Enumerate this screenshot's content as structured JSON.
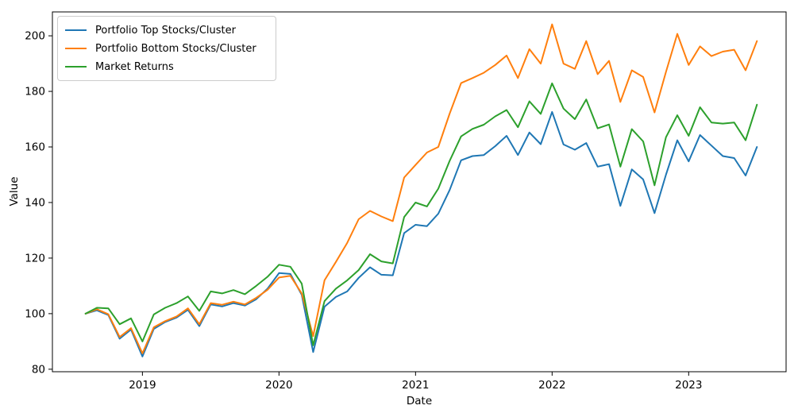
{
  "figure": {
    "kind": "matplotlib-line-figure",
    "background": "#ffffff",
    "spine_color": "#000000"
  },
  "chart_data": {
    "type": "line",
    "title": "",
    "xlabel": "Date",
    "ylabel": "Value",
    "grid": false,
    "legend_position": "upper left",
    "x_monthly": [
      "2018-07",
      "2018-08",
      "2018-09",
      "2018-10",
      "2018-11",
      "2018-12",
      "2019-01",
      "2019-02",
      "2019-03",
      "2019-04",
      "2019-05",
      "2019-06",
      "2019-07",
      "2019-08",
      "2019-09",
      "2019-10",
      "2019-11",
      "2019-12",
      "2020-01",
      "2020-02",
      "2020-03",
      "2020-04",
      "2020-05",
      "2020-06",
      "2020-07",
      "2020-08",
      "2020-09",
      "2020-10",
      "2020-11",
      "2020-12",
      "2021-01",
      "2021-02",
      "2021-03",
      "2021-04",
      "2021-05",
      "2021-06",
      "2021-07",
      "2021-08",
      "2021-09",
      "2021-10",
      "2021-11",
      "2021-12",
      "2022-01",
      "2022-02",
      "2022-03",
      "2022-04",
      "2022-05",
      "2022-06",
      "2022-07",
      "2022-08",
      "2022-09",
      "2022-10",
      "2022-11",
      "2022-12",
      "2023-01",
      "2023-02",
      "2023-03",
      "2023-04",
      "2023-05",
      "2023-06"
    ],
    "x_ticks": [
      {
        "month_index": 5,
        "label": "2019"
      },
      {
        "month_index": 17,
        "label": "2020"
      },
      {
        "month_index": 29,
        "label": "2021"
      },
      {
        "month_index": 41,
        "label": "2022"
      },
      {
        "month_index": 53,
        "label": "2023"
      }
    ],
    "y_ticks": [
      80,
      100,
      120,
      140,
      160,
      180,
      200
    ],
    "ylim": [
      79.1,
      208.6
    ],
    "xlim_month_index": [
      -2.91,
      61.56
    ],
    "series": [
      {
        "name": "Portfolio Top Stocks/Cluster",
        "color": "#1f77b4",
        "values": [
          100.0,
          101.2,
          99.5,
          91.0,
          94.3,
          84.6,
          94.5,
          97.0,
          98.6,
          101.4,
          95.5,
          103.3,
          102.6,
          103.8,
          102.9,
          105.2,
          109.0,
          114.6,
          114.3,
          106.8,
          86.2,
          102.5,
          106.0,
          108.0,
          112.9,
          116.7,
          114.0,
          113.8,
          129.0,
          132.0,
          131.5,
          136.0,
          144.5,
          155.2,
          156.7,
          157.1,
          160.3,
          164.0,
          157.1,
          165.2,
          161.0,
          172.6,
          160.9,
          159.0,
          161.4,
          152.9,
          153.8,
          138.8,
          151.9,
          148.3,
          136.2,
          150.0,
          162.4,
          154.8,
          164.3,
          160.5,
          156.7,
          156.0,
          149.7,
          160.0
        ]
      },
      {
        "name": "Portfolio Bottom Stocks/Cluster",
        "color": "#ff7f0e",
        "values": [
          100.0,
          101.6,
          99.8,
          91.6,
          94.8,
          85.7,
          95.1,
          97.3,
          99.0,
          101.9,
          96.2,
          103.8,
          103.2,
          104.3,
          103.3,
          105.7,
          108.6,
          113.0,
          113.6,
          107.3,
          91.9,
          112.0,
          118.6,
          125.5,
          134.0,
          137.0,
          135.0,
          133.3,
          149.0,
          153.5,
          158.0,
          160.0,
          172.0,
          183.0,
          184.8,
          186.7,
          189.5,
          192.9,
          184.8,
          195.2,
          190.0,
          204.1,
          190.0,
          188.1,
          198.1,
          186.2,
          191.0,
          176.2,
          187.6,
          185.2,
          172.4,
          187.0,
          200.7,
          189.5,
          196.2,
          192.7,
          194.3,
          195.0,
          187.6,
          198.1
        ]
      },
      {
        "name": "Market Returns",
        "color": "#2ca02c",
        "values": [
          100.0,
          102.1,
          101.9,
          96.2,
          98.3,
          90.0,
          99.7,
          102.1,
          103.8,
          106.2,
          101.0,
          108.0,
          107.3,
          108.5,
          107.0,
          110.0,
          113.3,
          117.6,
          116.9,
          110.8,
          88.6,
          104.5,
          109.0,
          112.0,
          115.7,
          121.4,
          118.8,
          118.1,
          134.8,
          140.0,
          138.6,
          145.0,
          155.0,
          163.8,
          166.5,
          168.0,
          171.0,
          173.3,
          167.1,
          176.4,
          171.9,
          182.9,
          173.8,
          170.0,
          177.1,
          166.7,
          168.1,
          152.9,
          166.4,
          162.0,
          146.2,
          163.5,
          171.4,
          164.0,
          174.3,
          168.8,
          168.4,
          168.8,
          162.4,
          175.2
        ]
      }
    ]
  }
}
